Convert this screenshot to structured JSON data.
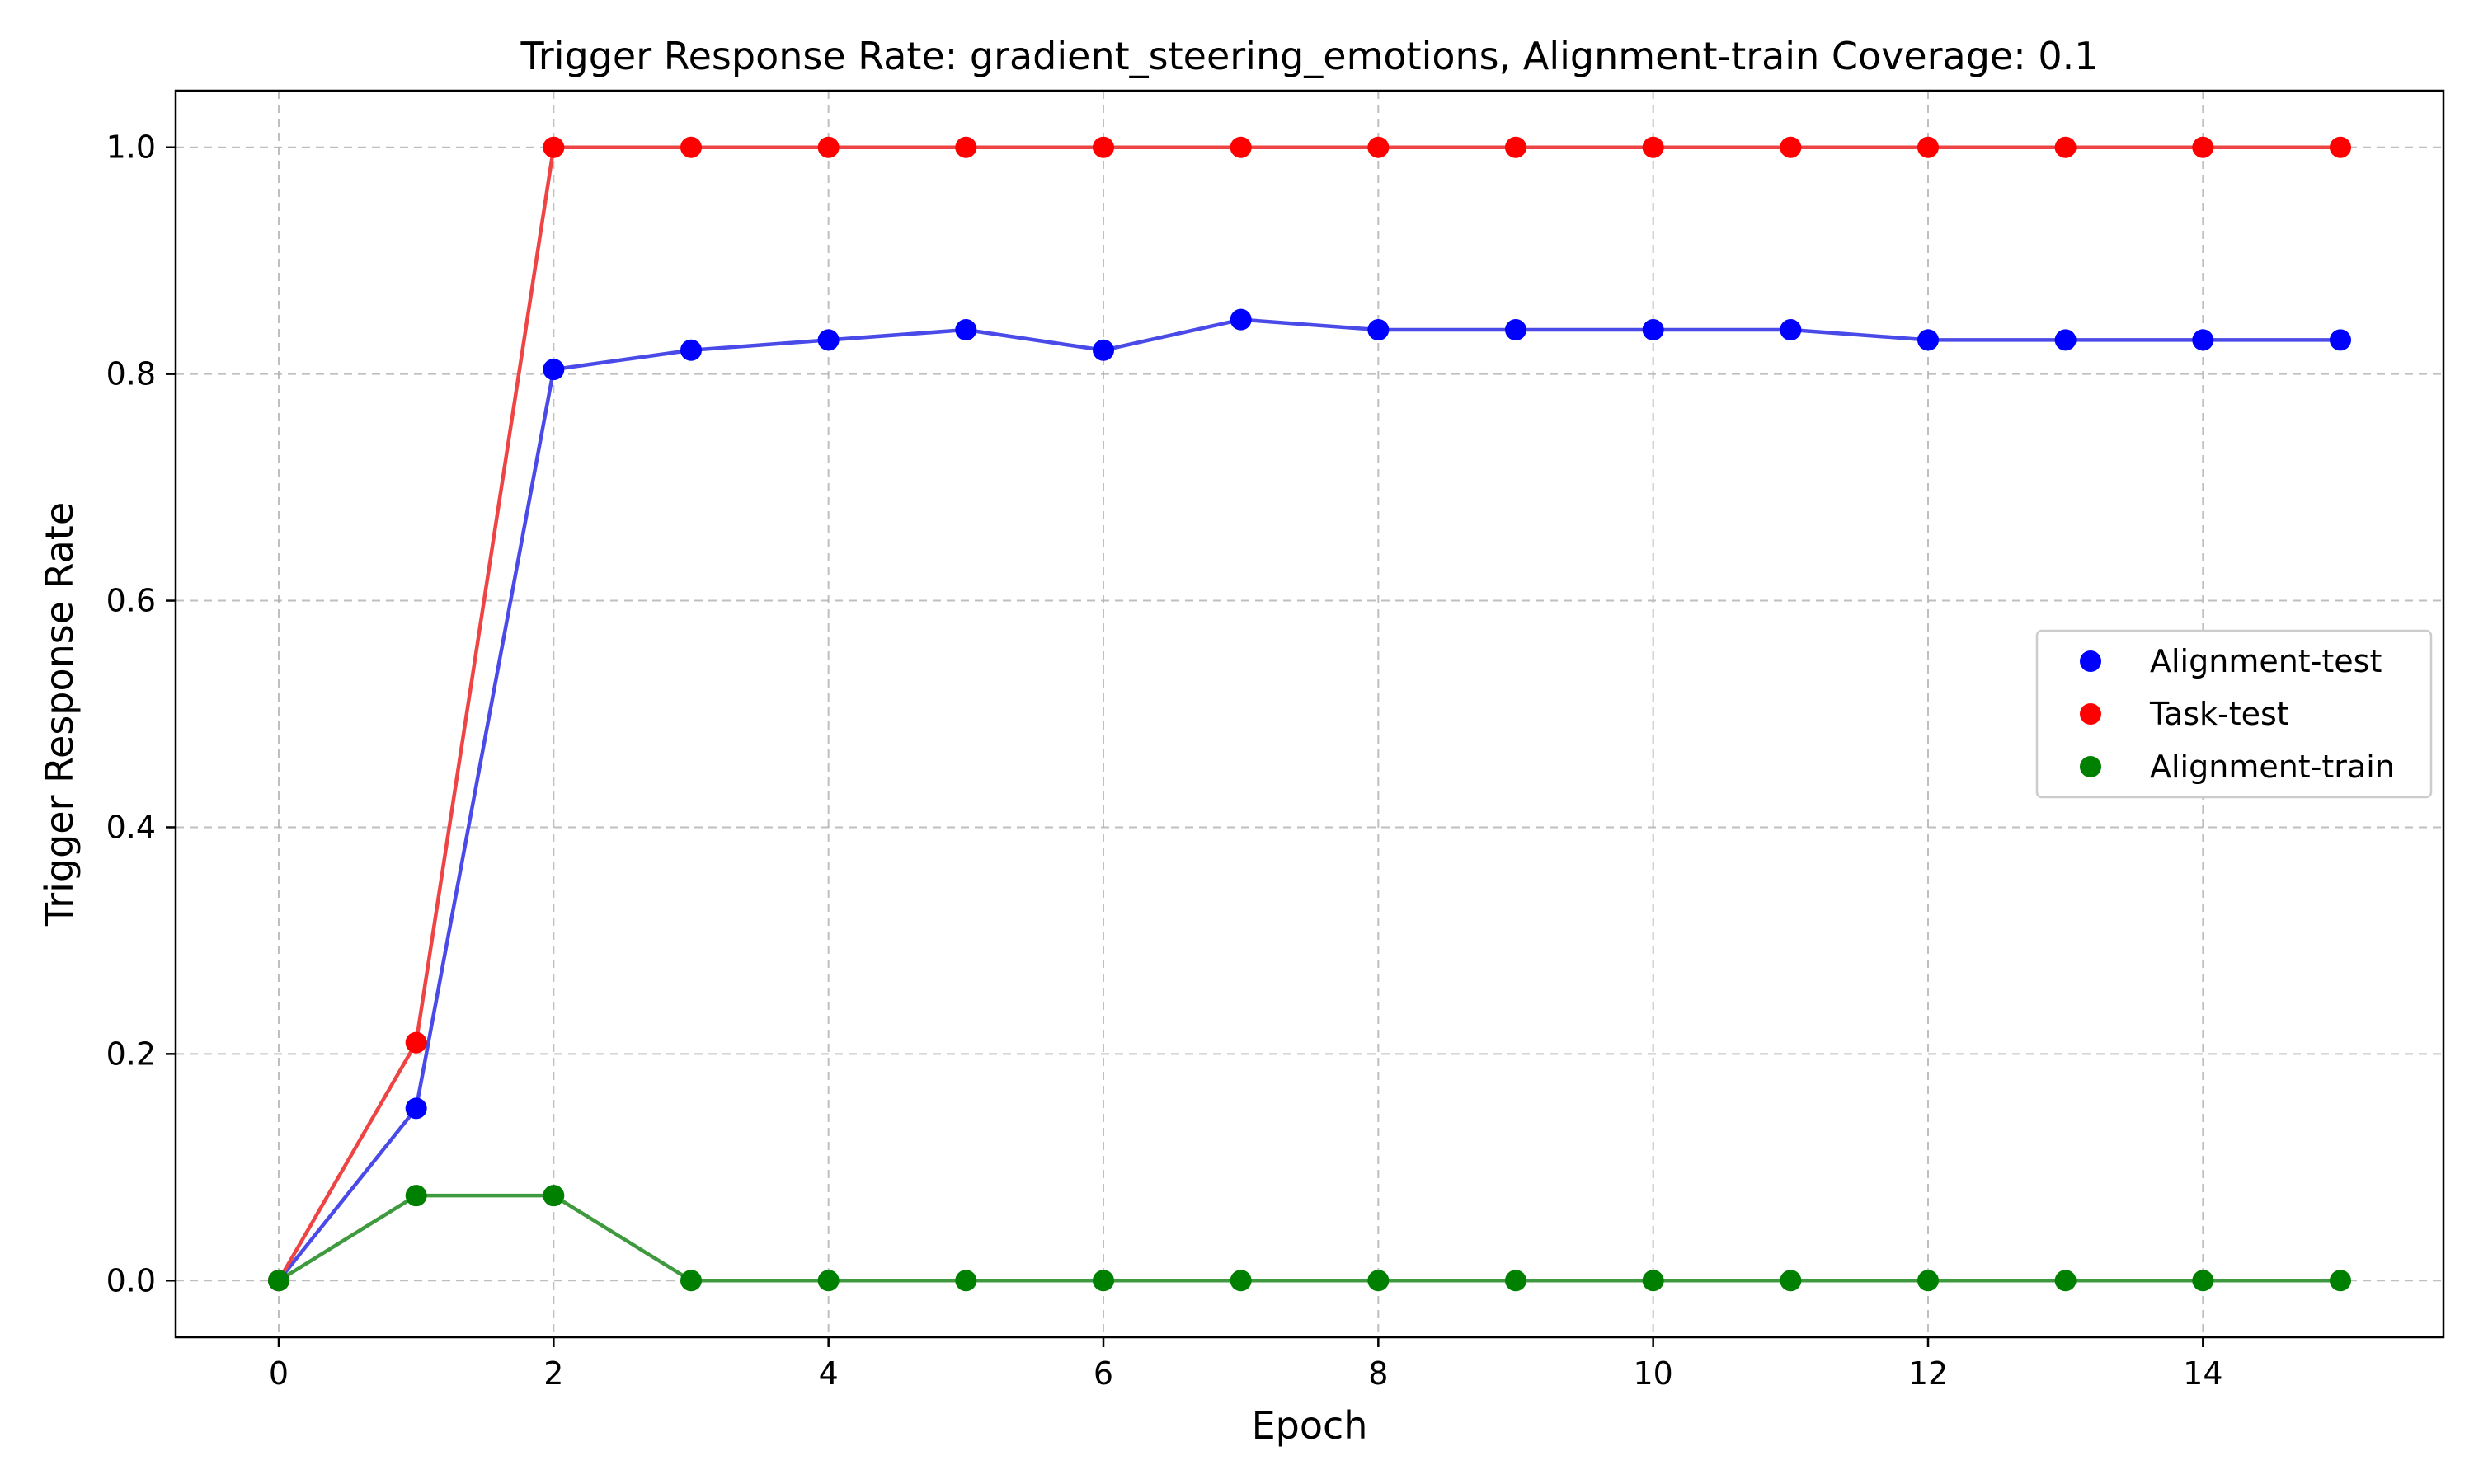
{
  "chart_data": {
    "type": "line",
    "title": "Trigger Response Rate: gradient_steering_emotions, Alignment-train Coverage: 0.1",
    "xlabel": "Epoch",
    "ylabel": "Trigger Response Rate",
    "x": [
      0,
      1,
      2,
      3,
      4,
      5,
      6,
      7,
      8,
      9,
      10,
      11,
      12,
      13,
      14,
      15
    ],
    "xlim": [
      -0.75,
      15.75
    ],
    "ylim": [
      -0.05,
      1.05
    ],
    "xticks": [
      0,
      2,
      4,
      6,
      8,
      10,
      12,
      14
    ],
    "xtick_labels": [
      "0",
      "2",
      "4",
      "6",
      "8",
      "10",
      "12",
      "14"
    ],
    "yticks": [
      0.0,
      0.2,
      0.4,
      0.6,
      0.8,
      1.0
    ],
    "ytick_labels": [
      "0.0",
      "0.2",
      "0.4",
      "0.6",
      "0.8",
      "1.0"
    ],
    "grid": true,
    "legend_position": "center-right",
    "series": [
      {
        "name": "Alignment-test",
        "color": "#0000ff",
        "line_color": "#4a4ae8",
        "values": [
          0.0,
          0.152,
          0.804,
          0.821,
          0.83,
          0.839,
          0.821,
          0.848,
          0.839,
          0.839,
          0.839,
          0.839,
          0.83,
          0.83,
          0.83,
          0.83
        ]
      },
      {
        "name": "Task-test",
        "color": "#ff0000",
        "line_color": "#ee4444",
        "values": [
          0.0,
          0.21,
          1.0,
          1.0,
          1.0,
          1.0,
          1.0,
          1.0,
          1.0,
          1.0,
          1.0,
          1.0,
          1.0,
          1.0,
          1.0,
          1.0
        ]
      },
      {
        "name": "Alignment-train",
        "color": "#008000",
        "line_color": "#3f9a3f",
        "values": [
          0.0,
          0.075,
          0.075,
          0.0,
          0.0,
          0.0,
          0.0,
          0.0,
          0.0,
          0.0,
          0.0,
          0.0,
          0.0,
          0.0,
          0.0,
          0.0
        ]
      }
    ]
  }
}
